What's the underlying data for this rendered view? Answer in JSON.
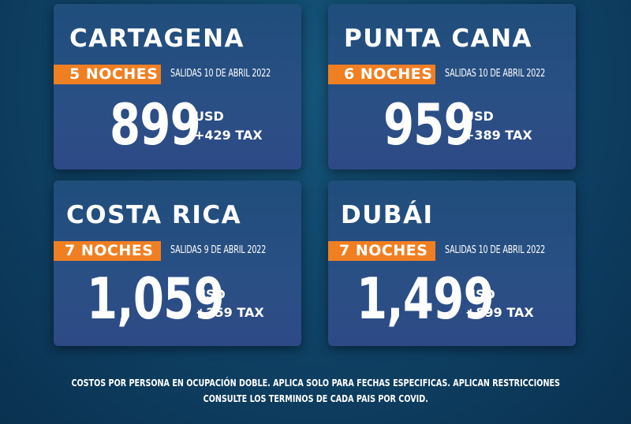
{
  "cards": [
    {
      "city": "CARTAGENA",
      "nights": "5 NOCHES",
      "departures": "SALIDAS 10 DE ABRIL 2022",
      "price": "899",
      "currency": "USD",
      "tax": "+429 TAX"
    },
    {
      "city": "PUNTA CANA",
      "nights": "6 NOCHES",
      "departures": "SALIDAS 10 DE ABRIL 2022",
      "price": "959",
      "currency": "USD",
      "tax": "+389 TAX"
    },
    {
      "city": "COSTA RICA",
      "nights": "7 NOCHES",
      "departures": "SALIDAS 9 DE ABRIL 2022",
      "price": "1,059",
      "currency": "USD",
      "tax": "+259 TAX"
    },
    {
      "city": "DUBÁI",
      "nights": "7 NOCHES",
      "departures": "SALIDAS 10 DE ABRIL 2022",
      "price": "1,499",
      "currency": "USD",
      "tax": "+899 TAX"
    }
  ],
  "footer": {
    "line1": "COSTOS POR PERSONA EN OCUPACIÓN DOBLE.  APLICA SOLO PARA FECHAS ESPECIFICAS. APLICAN RESTRICCIONES",
    "line2": "CONSULTE LOS TERMINOS DE CADA PAIS POR COVID."
  },
  "colors": {
    "badge": "#f07f22",
    "card": "#2a4f85",
    "background": "#0f4468",
    "text": "#ffffff"
  }
}
